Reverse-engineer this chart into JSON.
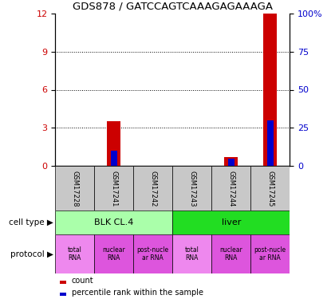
{
  "title": "GDS878 / GATCCAGTCAAAGAGAAAGA",
  "samples": [
    "GSM17228",
    "GSM17241",
    "GSM17242",
    "GSM17243",
    "GSM17244",
    "GSM17245"
  ],
  "red_counts": [
    0,
    3.5,
    0,
    0,
    0.7,
    12
  ],
  "blue_percentiles": [
    0,
    10,
    0,
    0,
    5,
    30
  ],
  "ylim_left": [
    0,
    12
  ],
  "ylim_right": [
    0,
    100
  ],
  "yticks_left": [
    0,
    3,
    6,
    9,
    12
  ],
  "yticks_right": [
    0,
    25,
    50,
    75,
    100
  ],
  "bar_width": 0.35,
  "red_color": "#CC0000",
  "blue_color": "#0000CC",
  "left_axis_color": "#CC0000",
  "right_axis_color": "#0000CC",
  "sample_bg_color": "#C8C8C8",
  "ct_colors": [
    "#AAFFAA",
    "#22DD22"
  ],
  "ct_labels": [
    "BLK CL.4",
    "liver"
  ],
  "proto_labels": [
    "total\nRNA",
    "nuclear\nRNA",
    "post-nucle\nar RNA",
    "total\nRNA",
    "nuclear\nRNA",
    "post-nucle\nar RNA"
  ],
  "proto_colors": [
    "#EE88EE",
    "#DD55DD",
    "#DD55DD",
    "#EE88EE",
    "#DD55DD",
    "#DD55DD"
  ],
  "legend_red_label": "count",
  "legend_blue_label": "percentile rank within the sample",
  "cell_type_label": "cell type",
  "protocol_label": "protocol"
}
